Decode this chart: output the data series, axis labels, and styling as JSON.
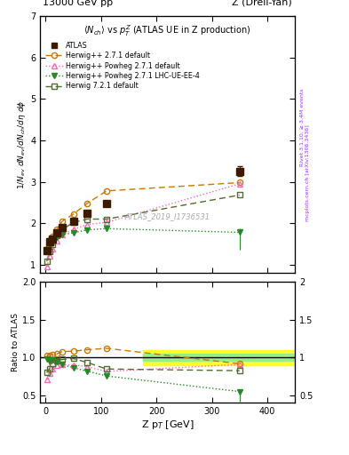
{
  "title_top_left": "13000 GeV pp",
  "title_top_right": "Z (Drell-Yan)",
  "main_title": "<N_{ch}> vs p_{T}^{Z} (ATLAS UE in Z production)",
  "ylabel_main": "1/N_{ev} dN_{ev}/dN_{ch}/dη dφ",
  "ylabel_ratio": "Ratio to ATLAS",
  "xlabel": "Z p$_T$ [GeV]",
  "watermark": "ATLAS_2019_I1736531",
  "right_label": "Rivet 3.1.10, ≥ 3.4M events",
  "right_label2": "mcplots.cern.ch [arXiv:1306.3436]",
  "atlas_x": [
    2,
    7,
    12,
    20,
    30,
    50,
    75,
    110,
    350
  ],
  "atlas_y": [
    1.35,
    1.55,
    1.62,
    1.77,
    1.9,
    2.05,
    2.25,
    2.48,
    3.25
  ],
  "atlas_yerr": [
    0.05,
    0.04,
    0.04,
    0.04,
    0.04,
    0.05,
    0.06,
    0.07,
    0.12
  ],
  "herwig271_x": [
    2,
    7,
    12,
    20,
    30,
    50,
    75,
    110,
    350
  ],
  "herwig271_y": [
    1.38,
    1.6,
    1.68,
    1.85,
    2.05,
    2.22,
    2.48,
    2.78,
    2.98
  ],
  "powheg271_x": [
    2,
    7,
    12,
    20,
    30,
    50,
    75,
    110,
    350
  ],
  "powheg271_y": [
    0.95,
    1.22,
    1.38,
    1.58,
    1.72,
    1.85,
    1.97,
    2.02,
    2.95
  ],
  "powheg271lhc_x": [
    2,
    7,
    12,
    20,
    30,
    50,
    75,
    110,
    350
  ],
  "powheg271lhc_y": [
    1.32,
    1.47,
    1.57,
    1.67,
    1.72,
    1.77,
    1.84,
    1.87,
    1.78
  ],
  "powheg271lhc_yerr_lo": 0.42,
  "powheg271lhc_yerr_hi": 0.1,
  "herwig721_x": [
    2,
    7,
    12,
    20,
    30,
    50,
    75,
    110,
    350
  ],
  "herwig721_y": [
    1.08,
    1.32,
    1.5,
    1.7,
    1.85,
    2.02,
    2.1,
    2.1,
    2.68
  ],
  "color_atlas": "#3B1A00",
  "color_herwig271": "#CC7700",
  "color_powheg271": "#FF69B4",
  "color_powheg271lhc": "#228B22",
  "color_herwig721": "#556B2F",
  "ylim_main": [
    0.8,
    7.0
  ],
  "ylim_ratio": [
    0.4,
    2.0
  ],
  "xlim": [
    -10,
    450
  ],
  "band_yellow_lo": 0.9,
  "band_yellow_hi": 1.1,
  "band_green_lo": 0.95,
  "band_green_hi": 1.05,
  "band_xstart": 175
}
